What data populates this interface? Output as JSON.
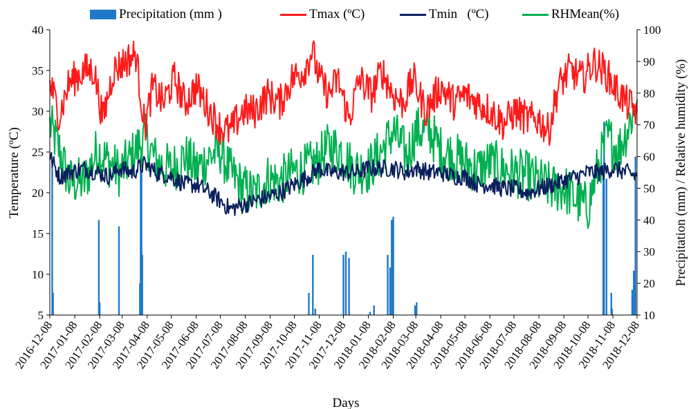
{
  "chart_data": {
    "type": "line",
    "xlabel": "Days",
    "ylabel_left": "Temperature (ºC)",
    "ylabel_right": "Precipitation (mm) / Relative humidity (%)",
    "x_tick_labels": [
      "2016-12-08",
      "2017-01-08",
      "2017-02-08",
      "2017-03-08",
      "2017-04-08",
      "2017-05-08",
      "2017-06-08",
      "2017-07-08",
      "2017-08-08",
      "2017-09-08",
      "2017-10-08",
      "2017-11-08",
      "2017-12-08",
      "2018-01-08",
      "2018-02-08",
      "2018-03-08",
      "2018-04-08",
      "2018-05-08",
      "2018-06-08",
      "2018-07-08",
      "2018-08-08",
      "2018-09-08",
      "2018-10-08",
      "2018-11-08",
      "2018-12-08"
    ],
    "x_range": [
      "2016-12-08",
      "2018-12-08"
    ],
    "ylim_left": [
      5,
      40
    ],
    "yticks_left": [
      5,
      10,
      15,
      20,
      25,
      30,
      35,
      40
    ],
    "ylim_right": [
      10,
      100
    ],
    "yticks_right": [
      10,
      20,
      30,
      40,
      50,
      60,
      70,
      80,
      90,
      100
    ],
    "grid": false,
    "legend_position": "top",
    "series": [
      {
        "name": "Precipitation (mm )",
        "kind": "bar",
        "axis": "right",
        "color": "#1f78c8",
        "points": [
          [
            "2016-12-11",
            57
          ],
          [
            "2016-12-12",
            17
          ],
          [
            "2017-02-07",
            40
          ],
          [
            "2017-02-08",
            14
          ],
          [
            "2017-03-04",
            38
          ],
          [
            "2017-03-30",
            20
          ],
          [
            "2017-03-31",
            60
          ],
          [
            "2017-04-01",
            55
          ],
          [
            "2017-04-02",
            29
          ],
          [
            "2017-10-26",
            17
          ],
          [
            "2017-10-31",
            29
          ],
          [
            "2017-11-03",
            12
          ],
          [
            "2017-12-08",
            29
          ],
          [
            "2017-12-11",
            30
          ],
          [
            "2017-12-15",
            28
          ],
          [
            "2018-01-10",
            11
          ],
          [
            "2018-01-15",
            13
          ],
          [
            "2018-02-01",
            29
          ],
          [
            "2018-02-04",
            25
          ],
          [
            "2018-02-06",
            40
          ],
          [
            "2018-02-08",
            41
          ],
          [
            "2018-03-07",
            13
          ],
          [
            "2018-03-09",
            14
          ],
          [
            "2018-10-27",
            53
          ],
          [
            "2018-10-28",
            71
          ],
          [
            "2018-10-31",
            53
          ],
          [
            "2018-11-06",
            17
          ],
          [
            "2018-11-07",
            12
          ],
          [
            "2018-12-02",
            18
          ],
          [
            "2018-12-04",
            24
          ],
          [
            "2018-12-06",
            60
          ]
        ]
      },
      {
        "name": "Tmax (ºC)",
        "kind": "line",
        "axis": "left",
        "color": "#ff1a1a",
        "points": [
          [
            "2016-12-08",
            33.5
          ],
          [
            "2016-12-20",
            29.5
          ],
          [
            "2017-01-01",
            33.5
          ],
          [
            "2017-01-20",
            35
          ],
          [
            "2017-02-01",
            35
          ],
          [
            "2017-02-12",
            29
          ],
          [
            "2017-02-25",
            35
          ],
          [
            "2017-03-10",
            36
          ],
          [
            "2017-03-25",
            37
          ],
          [
            "2017-04-05",
            28
          ],
          [
            "2017-04-15",
            33
          ],
          [
            "2017-04-28",
            31
          ],
          [
            "2017-05-12",
            34
          ],
          [
            "2017-05-25",
            31
          ],
          [
            "2017-06-08",
            33
          ],
          [
            "2017-06-25",
            30
          ],
          [
            "2017-07-08",
            28
          ],
          [
            "2017-07-20",
            27.5
          ],
          [
            "2017-08-05",
            30
          ],
          [
            "2017-08-20",
            30
          ],
          [
            "2017-09-05",
            32
          ],
          [
            "2017-09-20",
            31
          ],
          [
            "2017-10-05",
            34
          ],
          [
            "2017-10-20",
            35
          ],
          [
            "2017-10-30",
            37.5
          ],
          [
            "2017-11-08",
            34
          ],
          [
            "2017-11-20",
            32
          ],
          [
            "2017-12-01",
            34
          ],
          [
            "2017-12-15",
            29
          ],
          [
            "2017-12-28",
            34
          ],
          [
            "2018-01-12",
            32
          ],
          [
            "2018-01-25",
            35
          ],
          [
            "2018-02-08",
            32
          ],
          [
            "2018-02-20",
            31
          ],
          [
            "2018-03-05",
            34
          ],
          [
            "2018-03-20",
            30
          ],
          [
            "2018-04-08",
            33
          ],
          [
            "2018-04-25",
            31
          ],
          [
            "2018-05-08",
            32
          ],
          [
            "2018-05-25",
            31
          ],
          [
            "2018-06-10",
            30
          ],
          [
            "2018-06-25",
            28.5
          ],
          [
            "2018-07-10",
            30
          ],
          [
            "2018-07-25",
            29
          ],
          [
            "2018-08-08",
            29
          ],
          [
            "2018-08-20",
            27.5
          ],
          [
            "2018-09-01",
            33
          ],
          [
            "2018-09-15",
            35
          ],
          [
            "2018-10-01",
            34
          ],
          [
            "2018-10-15",
            36
          ],
          [
            "2018-10-28",
            35
          ],
          [
            "2018-11-10",
            33
          ],
          [
            "2018-11-25",
            31
          ],
          [
            "2018-12-08",
            30
          ]
        ]
      },
      {
        "name": "Tmin   (ºC)",
        "kind": "line",
        "axis": "left",
        "color": "#0a1f5c",
        "points": [
          [
            "2016-12-08",
            24.5
          ],
          [
            "2016-12-20",
            22
          ],
          [
            "2017-01-01",
            22.5
          ],
          [
            "2017-01-20",
            23
          ],
          [
            "2017-02-05",
            22.5
          ],
          [
            "2017-02-20",
            22
          ],
          [
            "2017-03-05",
            23
          ],
          [
            "2017-03-20",
            22.5
          ],
          [
            "2017-04-05",
            23.5
          ],
          [
            "2017-04-20",
            22.5
          ],
          [
            "2017-05-08",
            22
          ],
          [
            "2017-05-25",
            21
          ],
          [
            "2017-06-08",
            21
          ],
          [
            "2017-06-25",
            20
          ],
          [
            "2017-07-08",
            19
          ],
          [
            "2017-07-20",
            18
          ],
          [
            "2017-08-05",
            18.5
          ],
          [
            "2017-08-20",
            19
          ],
          [
            "2017-09-05",
            19.5
          ],
          [
            "2017-09-20",
            20
          ],
          [
            "2017-10-08",
            21
          ],
          [
            "2017-10-25",
            22
          ],
          [
            "2017-11-08",
            23
          ],
          [
            "2017-11-20",
            22.5
          ],
          [
            "2017-12-08",
            22.5
          ],
          [
            "2017-12-25",
            22.5
          ],
          [
            "2018-01-08",
            23
          ],
          [
            "2018-01-25",
            23
          ],
          [
            "2018-02-08",
            23
          ],
          [
            "2018-02-25",
            22.5
          ],
          [
            "2018-03-08",
            23
          ],
          [
            "2018-03-25",
            22.5
          ],
          [
            "2018-04-08",
            22.5
          ],
          [
            "2018-04-25",
            22
          ],
          [
            "2018-05-08",
            22
          ],
          [
            "2018-05-25",
            21
          ],
          [
            "2018-06-08",
            21
          ],
          [
            "2018-06-25",
            20.5
          ],
          [
            "2018-07-08",
            20.5
          ],
          [
            "2018-07-25",
            20
          ],
          [
            "2018-08-08",
            20.5
          ],
          [
            "2018-08-25",
            21
          ],
          [
            "2018-09-08",
            21.5
          ],
          [
            "2018-09-25",
            22
          ],
          [
            "2018-10-08",
            22.5
          ],
          [
            "2018-10-25",
            22.5
          ],
          [
            "2018-11-08",
            23
          ],
          [
            "2018-11-25",
            22.5
          ],
          [
            "2018-12-08",
            22
          ]
        ]
      },
      {
        "name": "RHMean(%)",
        "kind": "line",
        "axis": "right",
        "color": "#00b050",
        "points": [
          [
            "2016-12-08",
            70
          ],
          [
            "2016-12-20",
            62
          ],
          [
            "2017-01-01",
            52
          ],
          [
            "2017-01-20",
            52
          ],
          [
            "2017-02-05",
            62
          ],
          [
            "2017-02-20",
            58
          ],
          [
            "2017-03-05",
            55
          ],
          [
            "2017-03-20",
            60
          ],
          [
            "2017-04-05",
            66
          ],
          [
            "2017-04-20",
            58
          ],
          [
            "2017-05-08",
            56
          ],
          [
            "2017-05-25",
            60
          ],
          [
            "2017-06-08",
            56
          ],
          [
            "2017-06-25",
            60
          ],
          [
            "2017-07-08",
            62
          ],
          [
            "2017-07-20",
            55
          ],
          [
            "2017-08-05",
            50
          ],
          [
            "2017-08-20",
            48
          ],
          [
            "2017-09-05",
            53
          ],
          [
            "2017-09-20",
            52
          ],
          [
            "2017-10-05",
            55
          ],
          [
            "2017-10-20",
            56
          ],
          [
            "2017-11-05",
            58
          ],
          [
            "2017-11-20",
            63
          ],
          [
            "2017-12-05",
            62
          ],
          [
            "2017-12-20",
            56
          ],
          [
            "2018-01-08",
            56
          ],
          [
            "2018-01-25",
            62
          ],
          [
            "2018-02-08",
            68
          ],
          [
            "2018-02-25",
            60
          ],
          [
            "2018-03-08",
            68
          ],
          [
            "2018-03-25",
            68
          ],
          [
            "2018-04-08",
            62
          ],
          [
            "2018-04-25",
            60
          ],
          [
            "2018-05-08",
            58
          ],
          [
            "2018-05-25",
            56
          ],
          [
            "2018-06-08",
            58
          ],
          [
            "2018-06-25",
            56
          ],
          [
            "2018-07-08",
            55
          ],
          [
            "2018-07-25",
            54
          ],
          [
            "2018-08-08",
            52
          ],
          [
            "2018-08-25",
            50
          ],
          [
            "2018-09-08",
            50
          ],
          [
            "2018-09-25",
            46
          ],
          [
            "2018-10-08",
            44
          ],
          [
            "2018-10-20",
            56
          ],
          [
            "2018-11-01",
            66
          ],
          [
            "2018-11-15",
            62
          ],
          [
            "2018-11-28",
            70
          ],
          [
            "2018-12-08",
            78
          ]
        ]
      }
    ]
  }
}
